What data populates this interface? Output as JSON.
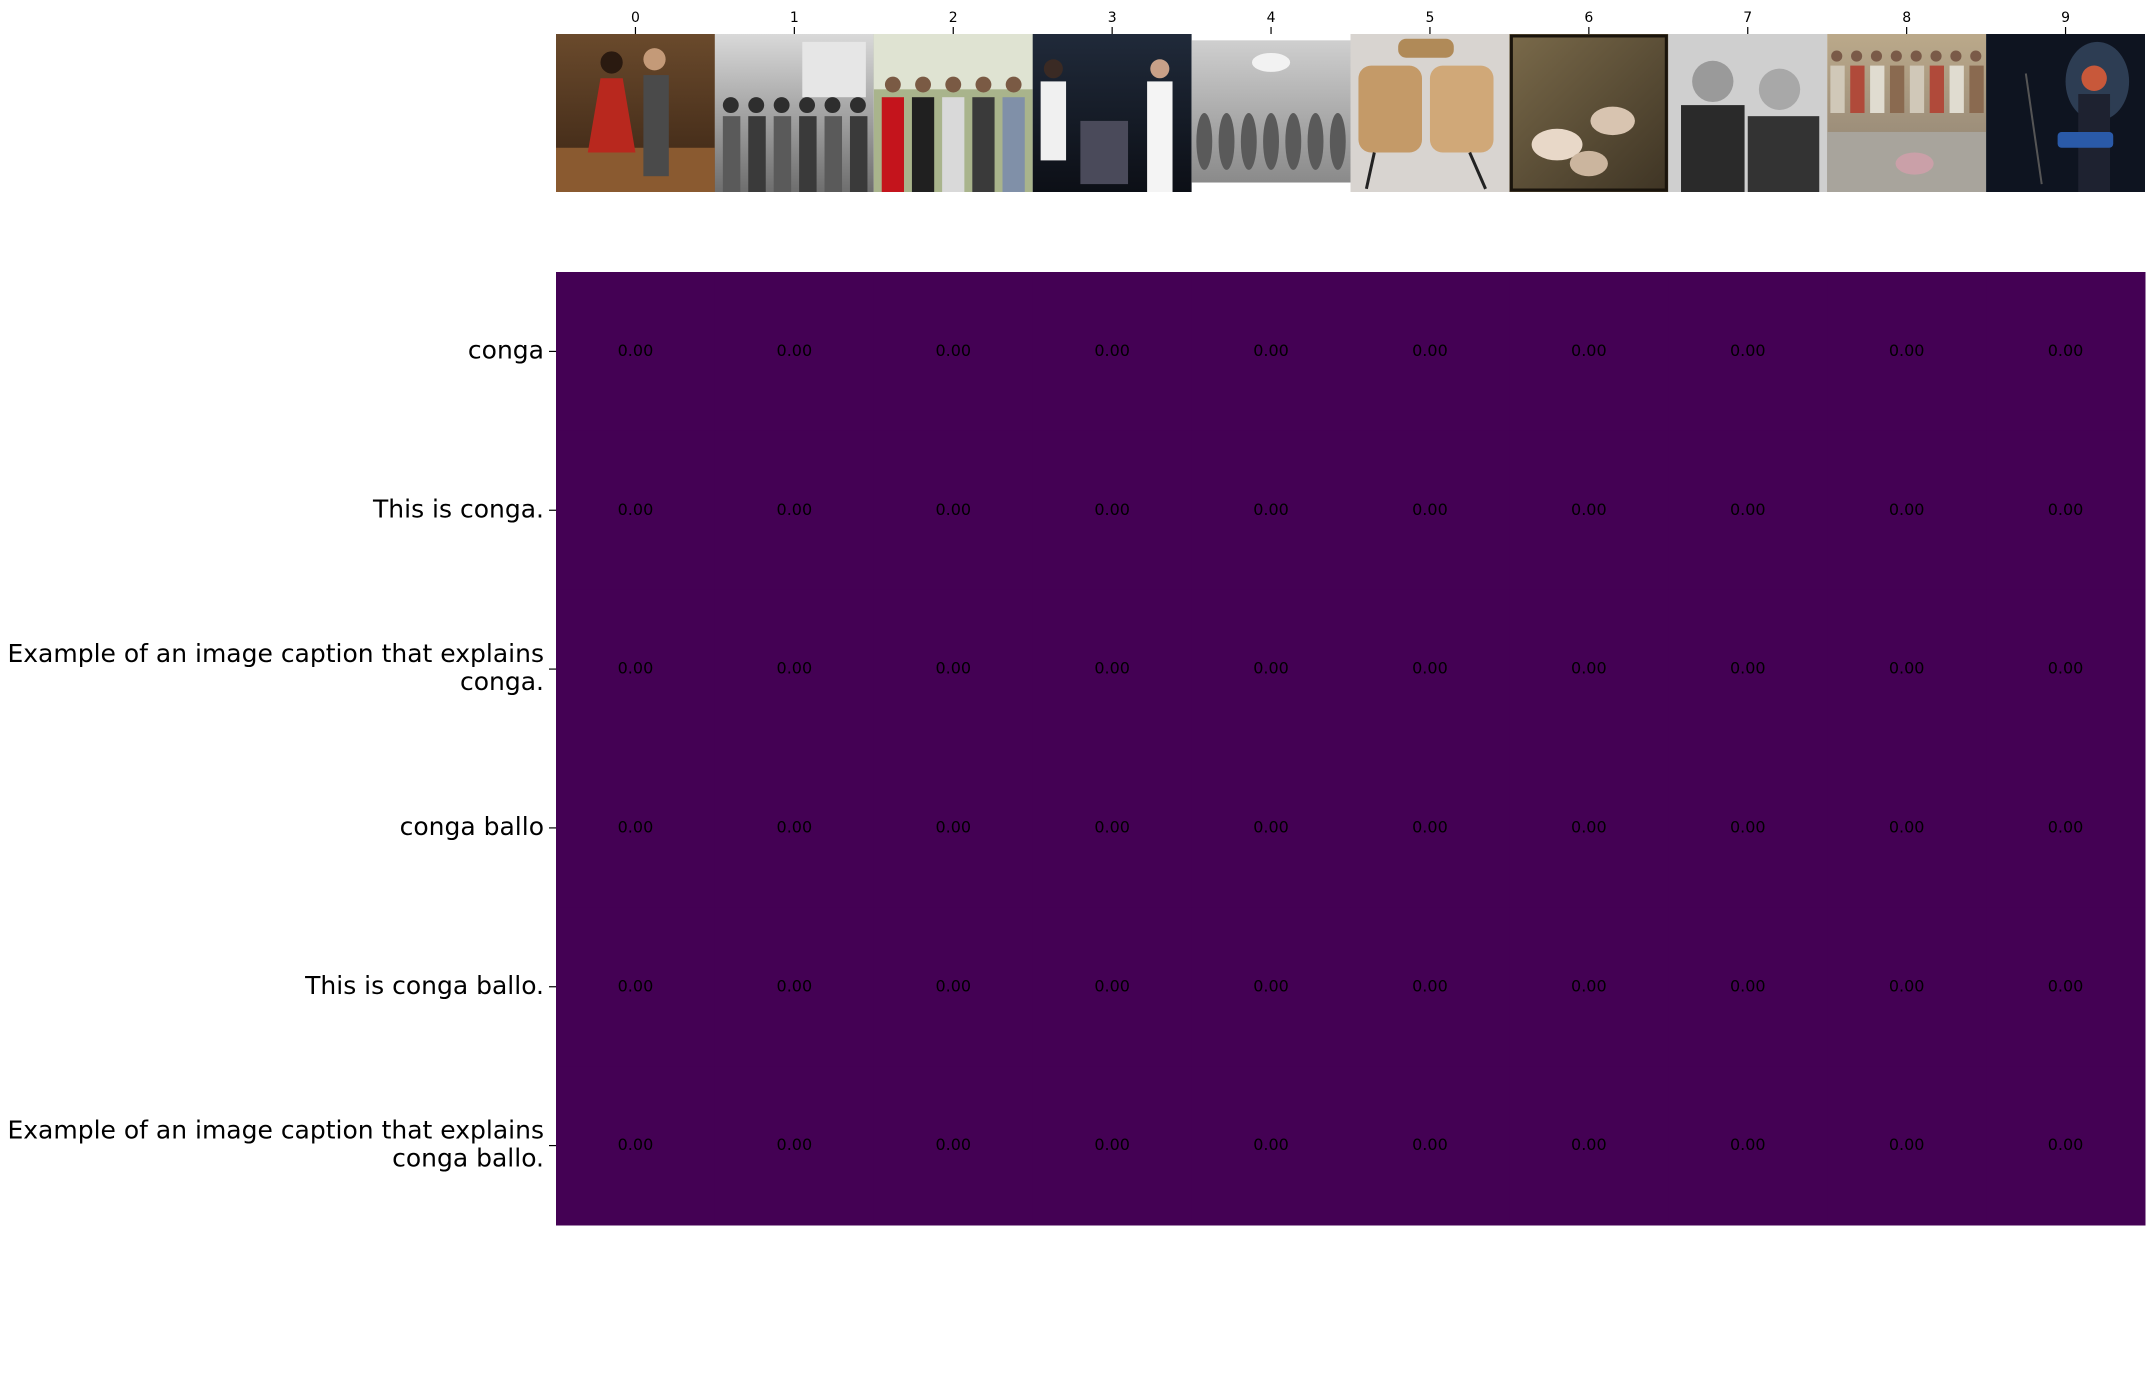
{
  "chart_data": {
    "type": "heatmap",
    "title": "",
    "xlabel": "",
    "ylabel": "",
    "x": [
      "0",
      "1",
      "2",
      "3",
      "4",
      "5",
      "6",
      "7",
      "8",
      "9"
    ],
    "x_thumbnails": [
      "couple-dancing-icon",
      "bw-crowd-photo-icon",
      "costumed-group-icon",
      "stage-performers-icon",
      "engraving-ballroom-icon",
      "conga-drums-icon",
      "ballet-painting-icon",
      "bw-two-men-icon",
      "group-photo-icon",
      "guitarist-on-stage-icon"
    ],
    "y": [
      "conga",
      "This is conga.",
      "Example of an image caption that explains conga.",
      "conga ballo",
      "This is conga ballo.",
      "Example of an image caption that explains conga ballo."
    ],
    "y_display": [
      [
        "conga"
      ],
      [
        "This is conga."
      ],
      [
        "Example of an image caption that explains",
        "conga."
      ],
      [
        "conga ballo"
      ],
      [
        "This is conga ballo."
      ],
      [
        "Example of an image caption that explains",
        "conga ballo."
      ]
    ],
    "values": [
      [
        0.0,
        0.0,
        0.0,
        0.0,
        0.0,
        0.0,
        0.0,
        0.0,
        0.0,
        0.0
      ],
      [
        0.0,
        0.0,
        0.0,
        0.0,
        0.0,
        0.0,
        0.0,
        0.0,
        0.0,
        0.0
      ],
      [
        0.0,
        0.0,
        0.0,
        0.0,
        0.0,
        0.0,
        0.0,
        0.0,
        0.0,
        0.0
      ],
      [
        0.0,
        0.0,
        0.0,
        0.0,
        0.0,
        0.0,
        0.0,
        0.0,
        0.0,
        0.0
      ],
      [
        0.0,
        0.0,
        0.0,
        0.0,
        0.0,
        0.0,
        0.0,
        0.0,
        0.0,
        0.0
      ],
      [
        0.0,
        0.0,
        0.0,
        0.0,
        0.0,
        0.0,
        0.0,
        0.0,
        0.0,
        0.0
      ]
    ],
    "value_format": "0.00",
    "colormap": "viridis",
    "cell_color": "#440154",
    "grid": false,
    "legend": "none"
  }
}
